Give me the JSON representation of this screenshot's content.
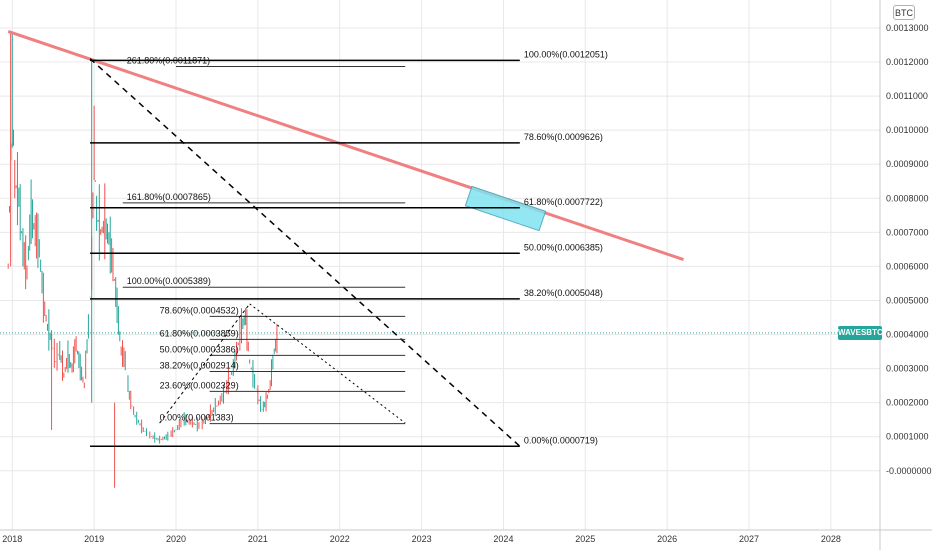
{
  "currency": "BTC",
  "symbol": "WAVESBTC",
  "colors": {
    "up": "#26a69a",
    "down": "#ef5350",
    "trendline": "#f08080",
    "highlight_fill": "#7fe3f0",
    "fib_line": "#000000",
    "grid": "#e8e8e8",
    "current_price_line": "#26a69a"
  },
  "chart_data": {
    "type": "candlestick",
    "x_axis": {
      "type": "year",
      "ticks": [
        "2018",
        "2019",
        "2020",
        "2021",
        "2022",
        "2023",
        "2024",
        "2025",
        "2026",
        "2027",
        "2028"
      ],
      "range": [
        2017.85,
        2028.6
      ]
    },
    "y_axis": {
      "unit": "BTC",
      "position": "right",
      "range": [
        -8e-05,
        0.0013
      ],
      "ticks": [
        "0.0013000",
        "0.0012000",
        "0.0011000",
        "0.0010000",
        "0.0009000",
        "0.0008000",
        "0.0007000",
        "0.0006000",
        "0.0005000",
        "0.0004000",
        "0.0003000",
        "0.0002000",
        "0.0001000",
        "-0.0000000"
      ]
    },
    "grid": true,
    "current_price": 0.000405,
    "price_series": {
      "name": "WAVESBTC",
      "points": [
        [
          2017.95,
          0.0006
        ],
        [
          2018.0,
          0.0011
        ],
        [
          2018.03,
          0.00085
        ],
        [
          2018.08,
          0.0008
        ],
        [
          2018.13,
          0.00065
        ],
        [
          2018.18,
          0.00058
        ],
        [
          2018.23,
          0.00075
        ],
        [
          2018.28,
          0.0007
        ],
        [
          2018.33,
          0.00065
        ],
        [
          2018.38,
          0.0005
        ],
        [
          2018.43,
          0.00042
        ],
        [
          2018.48,
          0.00038
        ],
        [
          2018.53,
          0.00032
        ],
        [
          2018.58,
          0.00035
        ],
        [
          2018.63,
          0.00028
        ],
        [
          2018.68,
          0.00033
        ],
        [
          2018.73,
          0.0003
        ],
        [
          2018.78,
          0.00037
        ],
        [
          2018.83,
          0.0003
        ],
        [
          2018.88,
          0.00025
        ],
        [
          2018.93,
          0.00042
        ],
        [
          2018.97,
          0.0006
        ],
        [
          2019.0,
          0.00095
        ],
        [
          2019.03,
          0.00075
        ],
        [
          2019.08,
          0.0007
        ],
        [
          2019.13,
          0.00072
        ],
        [
          2019.18,
          0.00068
        ],
        [
          2019.23,
          0.0006
        ],
        [
          2019.28,
          0.00048
        ],
        [
          2019.33,
          0.00035
        ],
        [
          2019.38,
          0.00032
        ],
        [
          2019.43,
          0.00022
        ],
        [
          2019.5,
          0.00016
        ],
        [
          2019.6,
          0.00012
        ],
        [
          2019.7,
          0.0001
        ],
        [
          2019.8,
          9e-05
        ],
        [
          2019.9,
          0.0001
        ],
        [
          2020.0,
          0.00012
        ],
        [
          2020.1,
          0.00015
        ],
        [
          2020.2,
          0.00014
        ],
        [
          2020.3,
          0.00013
        ],
        [
          2020.4,
          0.00016
        ],
        [
          2020.5,
          0.00019
        ],
        [
          2020.6,
          0.00023
        ],
        [
          2020.7,
          0.0003
        ],
        [
          2020.8,
          0.00042
        ],
        [
          2020.85,
          0.00045
        ],
        [
          2020.9,
          0.00032
        ],
        [
          2021.0,
          0.00022
        ],
        [
          2021.05,
          0.00018
        ],
        [
          2021.1,
          0.0002
        ],
        [
          2021.15,
          0.00025
        ],
        [
          2021.2,
          0.00035
        ],
        [
          2021.25,
          0.0004
        ]
      ]
    },
    "trendline": {
      "name": "",
      "from": [
        2017.95,
        0.00129
      ],
      "to": [
        2026.2,
        0.00062
      ]
    },
    "highlight_box": {
      "x_start": 2023.55,
      "x_end": 2024.5,
      "y_low": 0.00074,
      "y_high": 0.0008
    },
    "big_fib": {
      "x_start": 2018.95,
      "x_end": 2024.2,
      "dashed_leg": {
        "from": [
          2018.95,
          0.00121
        ],
        "to": [
          2024.2,
          7.2e-05
        ]
      },
      "levels": [
        {
          "label": "100.00%(0.0012051)",
          "value": 0.0012051
        },
        {
          "label": "78.60%(0.0009626)",
          "value": 0.0009626
        },
        {
          "label": "61.80%(0.0007722)",
          "value": 0.0007722
        },
        {
          "label": "50.00%(0.0006385)",
          "value": 0.0006385
        },
        {
          "label": "38.20%(0.0005048)",
          "value": 0.0005048
        },
        {
          "label": "0.00%(0.0000719)",
          "value": 7.19e-05
        }
      ]
    },
    "ext_fib": {
      "x_start": 2019.35,
      "x_end": 2022.8,
      "levels": [
        {
          "label": "261.80%(0.0011871)",
          "value": 0.0011871,
          "x_start": 2020.0
        },
        {
          "label": "161.80%(0.0007865)",
          "value": 0.0007865
        },
        {
          "label": "100.00%(0.0005389)",
          "value": 0.0005389
        }
      ]
    },
    "small_fib": {
      "x_start": 2019.8,
      "x_end": 2022.8,
      "dashed_leg": {
        "from": [
          2019.8,
          0.00014
        ],
        "to": [
          2020.9,
          0.00049
        ]
      },
      "dotted_leg": {
        "from": [
          2020.9,
          0.00049
        ],
        "to": [
          2022.8,
          0.00014
        ]
      },
      "levels": [
        {
          "label": "78.60%(0.0004532)",
          "value": 0.0004532
        },
        {
          "label": "61.80%(0.0003859)",
          "value": 0.0003859
        },
        {
          "label": "50.00%(0.0003386)",
          "value": 0.0003386
        },
        {
          "label": "38.20%(0.0002914)",
          "value": 0.0002914
        },
        {
          "label": "23.60%(0.0002329)",
          "value": 0.0002329
        },
        {
          "label": "0.00%(0.0001383)",
          "value": 0.0001383
        }
      ]
    }
  }
}
